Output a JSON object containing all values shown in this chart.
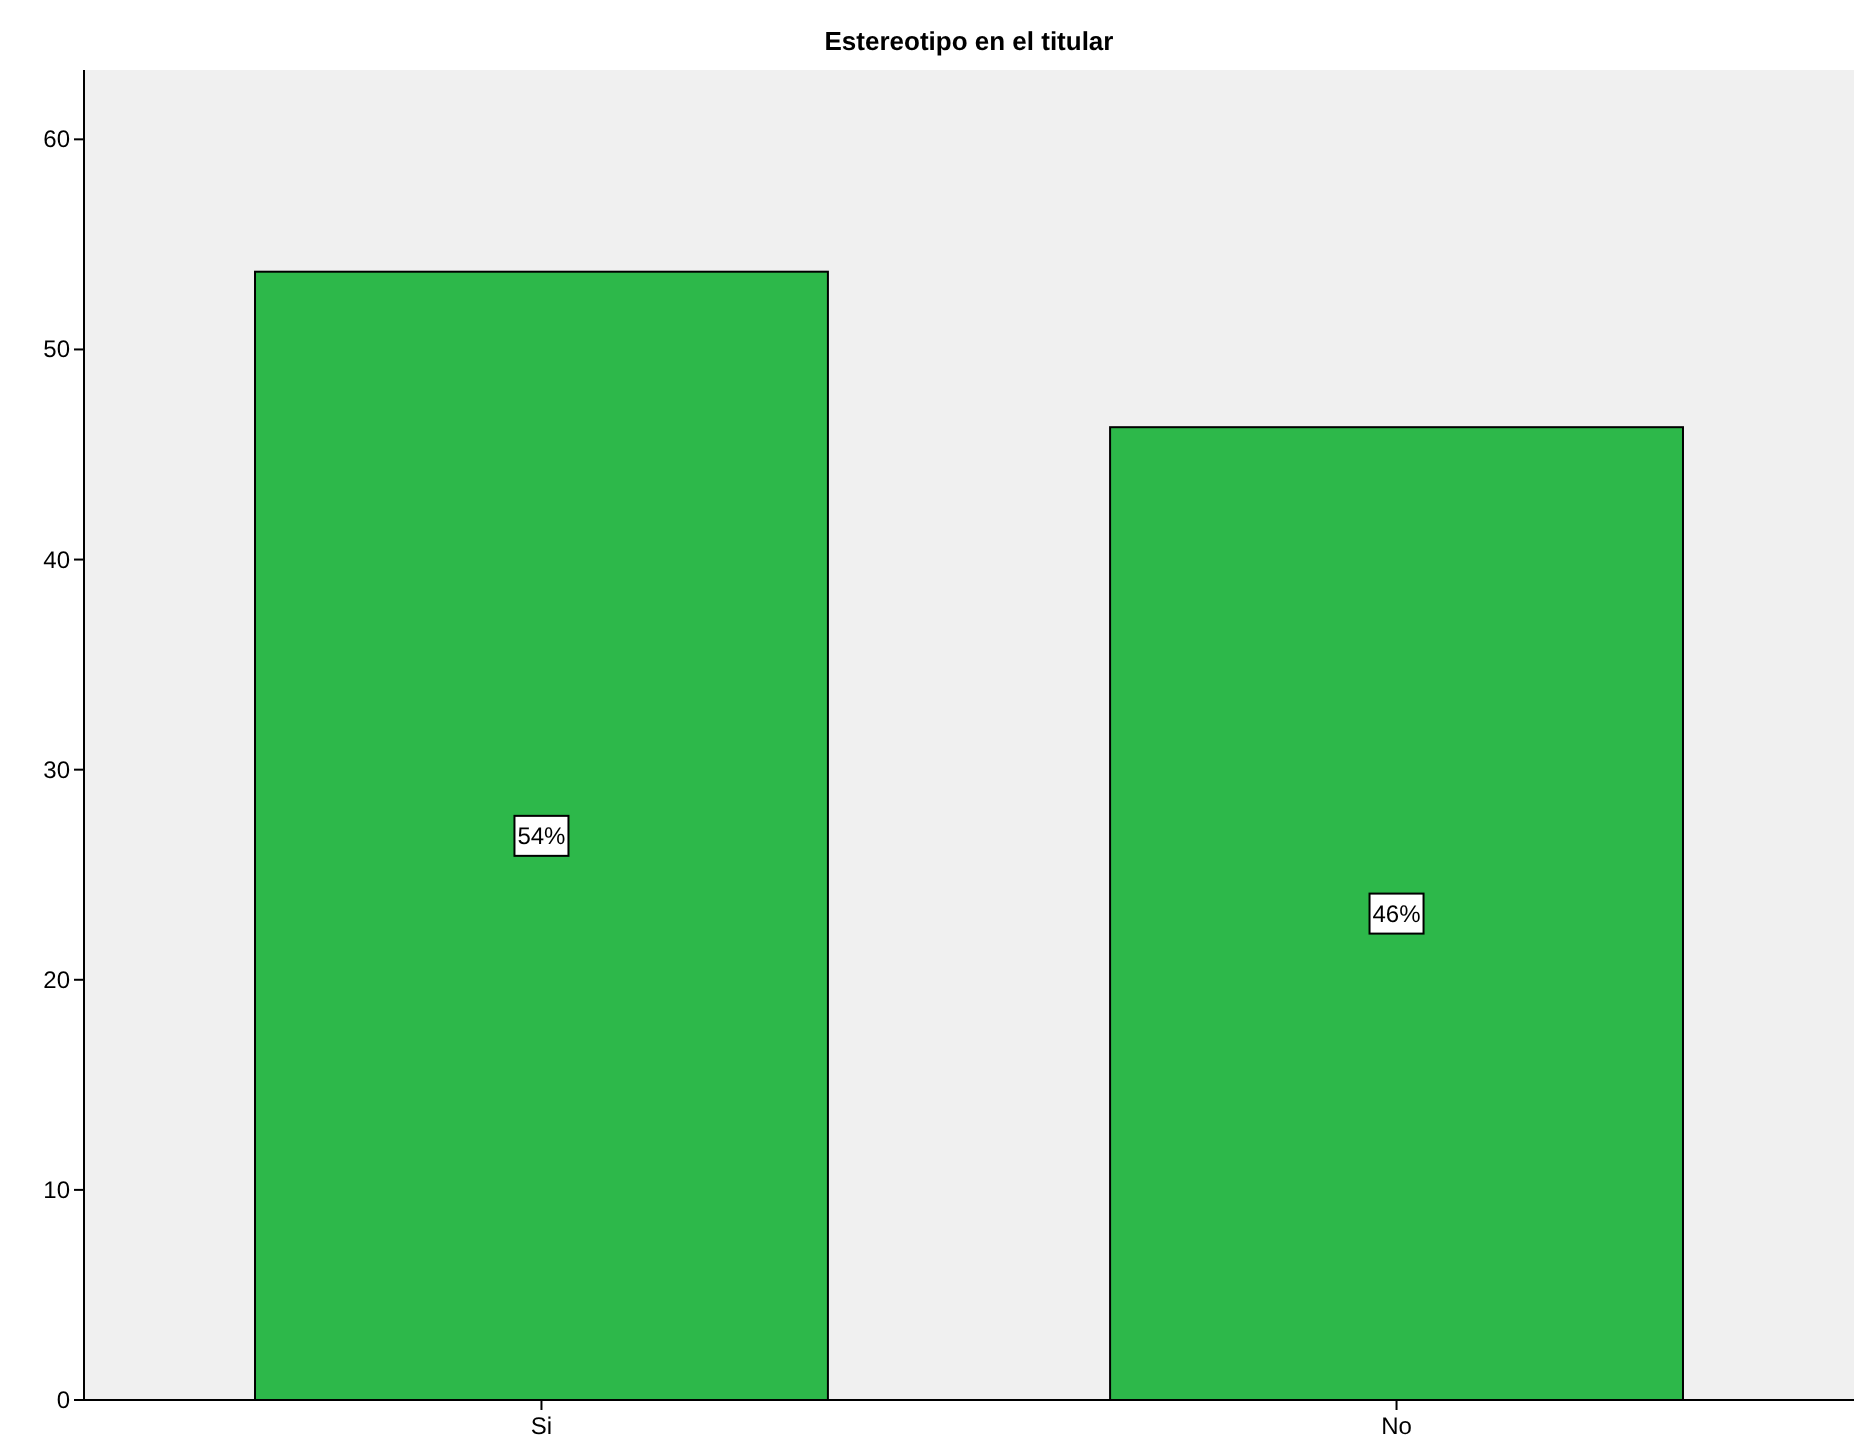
{
  "chart_data": {
    "type": "bar",
    "title": "Estereotipo en el titular",
    "categories": [
      "Si",
      "No"
    ],
    "values": [
      53.7,
      46.3
    ],
    "value_labels": [
      "54%",
      "46%"
    ],
    "color": "#2db84a",
    "ylim": [
      0,
      63.3
    ],
    "yticks": [
      0,
      10,
      20,
      30,
      40,
      50,
      60
    ],
    "grid": false
  }
}
